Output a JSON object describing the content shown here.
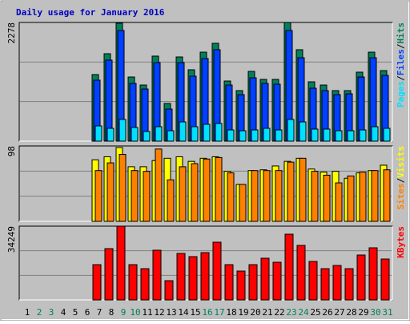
{
  "chart_data": {
    "type": "bar",
    "title": "Daily usage for January 2016",
    "separator": "/",
    "categories": [
      "1",
      "2",
      "3",
      "4",
      "5",
      "6",
      "7",
      "8",
      "9",
      "10",
      "11",
      "12",
      "13",
      "14",
      "15",
      "16",
      "17",
      "18",
      "19",
      "20",
      "21",
      "22",
      "23",
      "24",
      "25",
      "26",
      "27",
      "28",
      "29",
      "30",
      "31"
    ],
    "category_colors": [
      "#000000",
      "#00805c",
      "#00805c",
      "#000000",
      "#000000",
      "#000000",
      "#000000",
      "#000000",
      "#00805c",
      "#00805c",
      "#000000",
      "#000000",
      "#000000",
      "#000000",
      "#000000",
      "#00805c",
      "#00805c",
      "#000000",
      "#000000",
      "#000000",
      "#000000",
      "#000000",
      "#00805c",
      "#00805c",
      "#000000",
      "#000000",
      "#000000",
      "#000000",
      "#000000",
      "#00805c",
      "#00805c"
    ],
    "panels": [
      {
        "ylim": [
          0,
          2278
        ],
        "yticks": [
          2278
        ],
        "series": [
          {
            "name": "Hits",
            "color": "#00805c",
            "values": [
              0,
              0,
              0,
              0,
              0,
              0,
              1278,
              1678,
              2263,
              1231,
              1077,
              1632,
              723,
              1616,
              1370,
              1708,
              1878,
              1154,
              970,
              1339,
              1185,
              1185,
              2278,
              1755,
              1139,
              1077,
              970,
              970,
              1324,
              1708,
              1354
            ]
          },
          {
            "name": "Files",
            "color": "#0040ff",
            "values": [
              0,
              0,
              0,
              0,
              0,
              0,
              1170,
              1555,
              2124,
              1108,
              1000,
              1508,
              616,
              1508,
              1247,
              1585,
              1755,
              1077,
              893,
              1216,
              1108,
              1093,
              2124,
              1601,
              1016,
              970,
              893,
              908,
              1231,
              1601,
              1262
            ]
          },
          {
            "name": "Pages",
            "color": "#00e0ff",
            "values": [
              0,
              0,
              0,
              0,
              0,
              0,
              292,
              246,
              416,
              262,
              185,
              277,
              200,
              369,
              277,
              323,
              339,
              215,
              200,
              215,
              246,
              215,
              416,
              369,
              231,
              231,
              200,
              200,
              215,
              277,
              246
            ]
          }
        ]
      },
      {
        "ylim": [
          0,
          98
        ],
        "yticks": [
          98
        ],
        "series": [
          {
            "name": "Visits",
            "color": "#ffff00",
            "values": [
              0,
              0,
              0,
              0,
              0,
              0,
              80,
              84,
              96,
              71,
              71,
              79,
              82,
              84,
              78,
              82,
              84,
              65,
              48,
              66,
              67,
              72,
              78,
              82,
              68,
              64,
              65,
              56,
              63,
              66,
              73
            ]
          },
          {
            "name": "Sites",
            "color": "#ff8000",
            "values": [
              0,
              0,
              0,
              0,
              0,
              0,
              66,
              76,
              87,
              66,
              65,
              94,
              54,
              71,
              75,
              81,
              83,
              63,
              48,
              66,
              66,
              66,
              77,
              82,
              65,
              60,
              50,
              59,
              64,
              66,
              67
            ]
          }
        ]
      },
      {
        "ylim": [
          0,
          34249
        ],
        "yticks": [
          34249
        ],
        "series": [
          {
            "name": "KBytes",
            "color": "#ff0000",
            "values": [
              0,
              0,
              0,
              0,
              0,
              0,
              16380,
              23825,
              34249,
              16380,
              14519,
              23081,
              8935,
              21592,
              20103,
              21964,
              26803,
              16380,
              13402,
              16380,
              19358,
              17497,
              30526,
              25315,
              17869,
              14519,
              16008,
              14519,
              20847,
              24198,
              18986
            ]
          }
        ]
      }
    ]
  }
}
